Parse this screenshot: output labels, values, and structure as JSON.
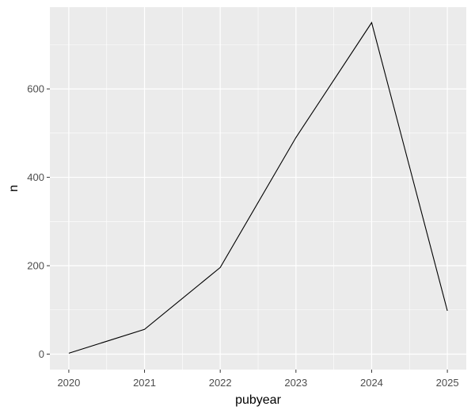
{
  "chart_data": {
    "type": "line",
    "xlabel": "pubyear",
    "ylabel": "n",
    "x": [
      2020,
      2021,
      2022,
      2023,
      2024,
      2025
    ],
    "series": [
      {
        "values": [
          2,
          56,
          196,
          490,
          750,
          98
        ]
      }
    ],
    "xlim": [
      2019.75,
      2025.25
    ],
    "ylim": [
      -35,
      785
    ],
    "x_ticks": [
      2020,
      2021,
      2022,
      2023,
      2024,
      2025
    ],
    "y_ticks": [
      0,
      200,
      400,
      600
    ],
    "grid": true,
    "colors": {
      "panel_background": "#ebebeb",
      "grid_major": "#ffffff",
      "line": "#000000"
    }
  }
}
